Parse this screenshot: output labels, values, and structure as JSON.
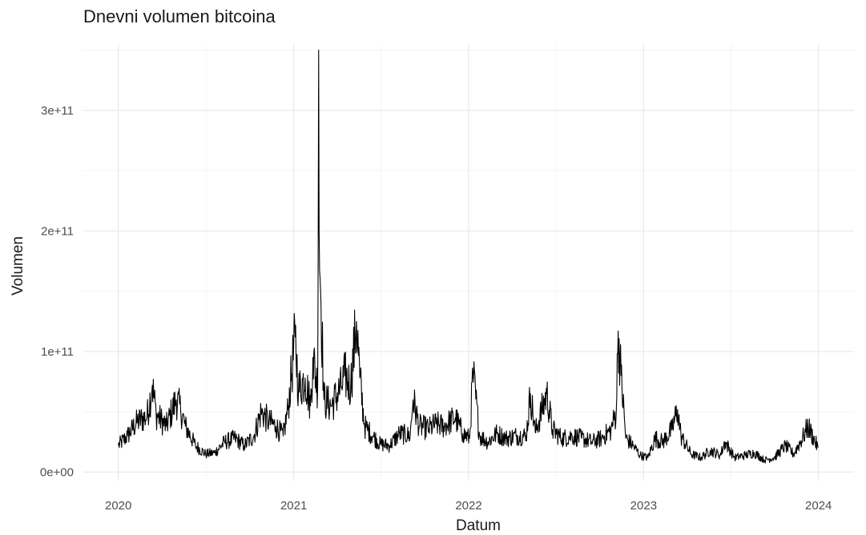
{
  "chart_data": {
    "type": "line",
    "title": "Dnevni volumen bitcoina",
    "xlabel": "Datum",
    "ylabel": "Volumen",
    "grid": true,
    "legend": "none",
    "line_color": "#000000",
    "xlim": [
      "2019-10-20",
      "2024-03-15"
    ],
    "ylim": [
      -7000000000,
      355000000000
    ],
    "x_ticks": [
      {
        "value": "2020-01-01",
        "label": "2020"
      },
      {
        "value": "2021-01-01",
        "label": "2021"
      },
      {
        "value": "2022-01-01",
        "label": "2022"
      },
      {
        "value": "2023-01-01",
        "label": "2023"
      },
      {
        "value": "2024-01-01",
        "label": "2024"
      }
    ],
    "y_ticks": [
      {
        "value": 0,
        "label": "0e+00"
      },
      {
        "value": 100000000000,
        "label": "1e+11"
      },
      {
        "value": 200000000000,
        "label": "2e+11"
      },
      {
        "value": 300000000000,
        "label": "3e+11"
      }
    ],
    "series": [
      {
        "x": [
          "2020-01-01",
          "2020-01-20",
          "2020-02-10",
          "2020-03-01",
          "2020-03-12",
          "2020-03-20",
          "2020-04-10",
          "2020-05-01",
          "2020-05-10",
          "2020-05-20",
          "2020-06-10",
          "2020-07-01",
          "2020-07-20",
          "2020-08-10",
          "2020-09-01",
          "2020-09-20",
          "2020-10-10",
          "2020-10-25",
          "2020-11-10",
          "2020-11-25",
          "2020-12-10",
          "2020-12-20",
          "2021-01-04",
          "2021-01-11",
          "2021-01-25",
          "2021-02-05",
          "2021-02-10",
          "2021-02-20",
          "2021-02-22",
          "2021-02-23",
          "2021-03-05",
          "2021-03-20",
          "2021-04-10",
          "2021-04-18",
          "2021-04-30",
          "2021-05-12",
          "2021-05-19",
          "2021-05-29",
          "2021-06-15",
          "2021-07-01",
          "2021-07-20",
          "2021-08-10",
          "2021-09-01",
          "2021-09-07",
          "2021-09-20",
          "2021-10-10",
          "2021-10-25",
          "2021-11-10",
          "2021-12-04",
          "2021-12-20",
          "2022-01-03",
          "2022-01-10",
          "2022-01-24",
          "2022-02-10",
          "2022-03-01",
          "2022-03-20",
          "2022-04-10",
          "2022-05-01",
          "2022-05-10",
          "2022-05-20",
          "2022-06-13",
          "2022-06-25",
          "2022-07-15",
          "2022-08-05",
          "2022-08-25",
          "2022-09-15",
          "2022-10-05",
          "2022-10-25",
          "2022-11-05",
          "2022-11-09",
          "2022-11-15",
          "2022-11-25",
          "2022-12-10",
          "2022-12-25",
          "2023-01-10",
          "2023-01-25",
          "2023-02-10",
          "2023-03-01",
          "2023-03-13",
          "2023-03-20",
          "2023-04-10",
          "2023-05-01",
          "2023-05-20",
          "2023-06-10",
          "2023-06-20",
          "2023-07-10",
          "2023-08-01",
          "2023-08-20",
          "2023-09-10",
          "2023-10-01",
          "2023-10-24",
          "2023-11-10",
          "2023-12-01",
          "2023-12-10",
          "2023-12-31"
        ],
        "y": [
          22000000000,
          30000000000,
          42000000000,
          46000000000,
          72000000000,
          48000000000,
          38000000000,
          60000000000,
          52000000000,
          38000000000,
          22000000000,
          15000000000,
          16000000000,
          25000000000,
          28000000000,
          22000000000,
          30000000000,
          50000000000,
          42000000000,
          38000000000,
          30000000000,
          52000000000,
          112000000000,
          68000000000,
          78000000000,
          55000000000,
          95000000000,
          70000000000,
          350000000000,
          200000000000,
          60000000000,
          55000000000,
          70000000000,
          80000000000,
          72000000000,
          125000000000,
          78000000000,
          38000000000,
          30000000000,
          23000000000,
          22000000000,
          32000000000,
          30000000000,
          60000000000,
          38000000000,
          36000000000,
          40000000000,
          38000000000,
          45000000000,
          32000000000,
          28000000000,
          82000000000,
          30000000000,
          25000000000,
          32000000000,
          28000000000,
          30000000000,
          30000000000,
          65000000000,
          33000000000,
          65000000000,
          35000000000,
          28000000000,
          30000000000,
          28000000000,
          25000000000,
          28000000000,
          35000000000,
          50000000000,
          117000000000,
          80000000000,
          28000000000,
          22000000000,
          14000000000,
          12000000000,
          28000000000,
          25000000000,
          35000000000,
          52000000000,
          30000000000,
          15000000000,
          12000000000,
          18000000000,
          14000000000,
          25000000000,
          12000000000,
          14000000000,
          16000000000,
          10000000000,
          12000000000,
          22000000000,
          15000000000,
          30000000000,
          38000000000,
          20000000000
        ]
      }
    ]
  }
}
